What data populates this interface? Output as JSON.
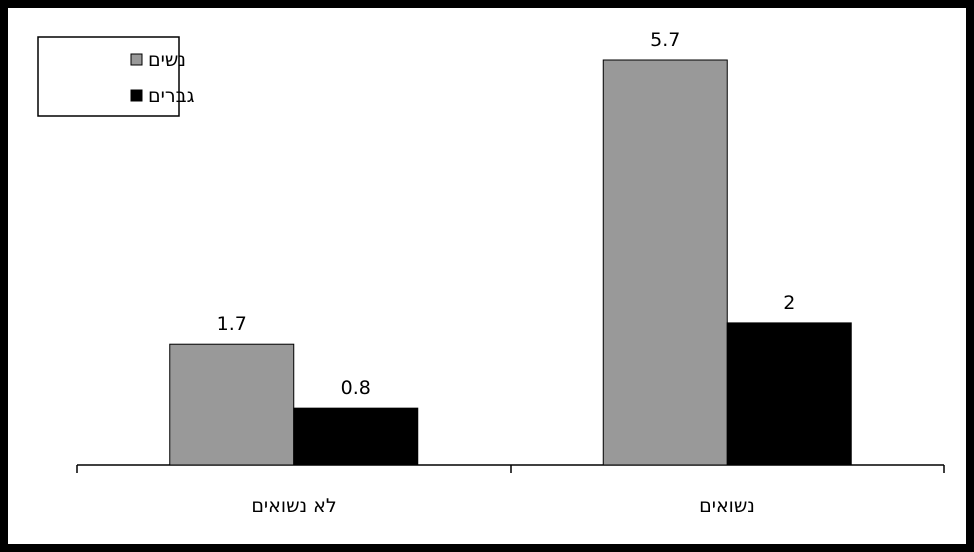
{
  "chart_data": {
    "type": "bar",
    "categories": [
      "לא נשואים",
      "נשואים"
    ],
    "series": [
      {
        "name": "נשים",
        "color": "#999999",
        "values": [
          1.7,
          5.7
        ],
        "labels": [
          "1.7",
          "5.7"
        ]
      },
      {
        "name": "גברים",
        "color": "#000000",
        "values": [
          0.8,
          2
        ],
        "labels": [
          "0.8",
          "2"
        ]
      }
    ],
    "legend": {
      "placement": "top-left",
      "direction": "rtl"
    },
    "grid": false,
    "ylim": [
      0,
      5.7
    ],
    "axis_line_color": "#000000"
  }
}
